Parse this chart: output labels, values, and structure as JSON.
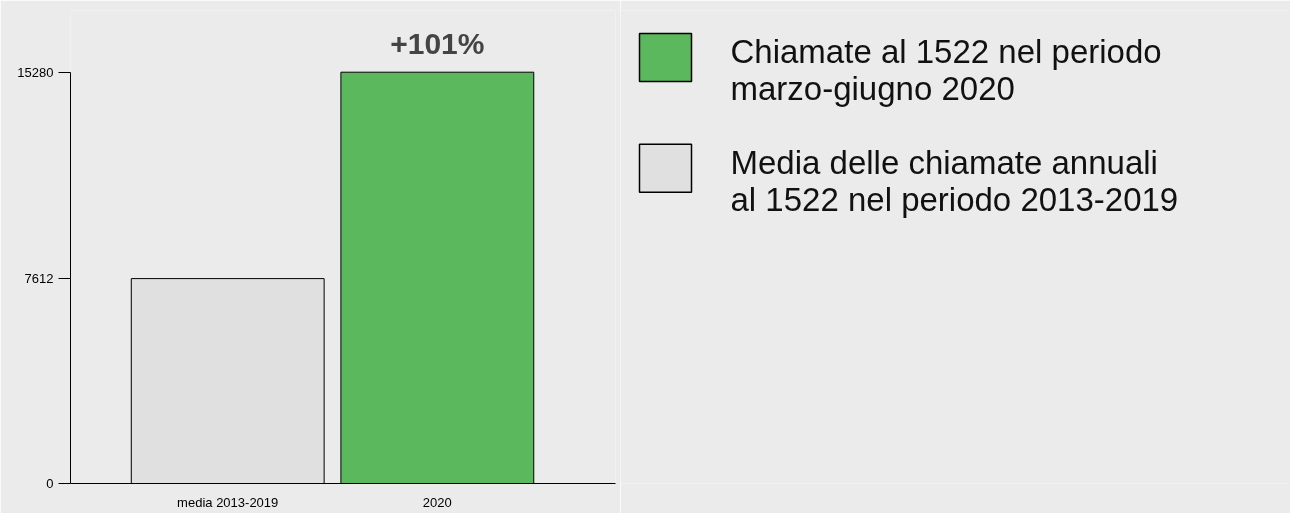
{
  "chart_data": {
    "type": "bar",
    "categories": [
      "media 2013-2019",
      "2020"
    ],
    "series": [
      {
        "name": "Chiamate al 1522 nel periodo marzo-giugno 2020",
        "color": "#5cb85c",
        "values": [
          null,
          15280
        ]
      },
      {
        "name": "Media delle chiamate annuali al 1522 nel periodo 2013-2019",
        "color": "#e0e0e0",
        "values": [
          7612,
          null
        ]
      }
    ],
    "ylim": [
      0,
      15280
    ],
    "yticks": [
      0,
      7612,
      15280
    ],
    "grid": false,
    "legend": "right",
    "annotations": [
      {
        "text": "+101%",
        "x": "2020",
        "y": 15280
      }
    ]
  }
}
